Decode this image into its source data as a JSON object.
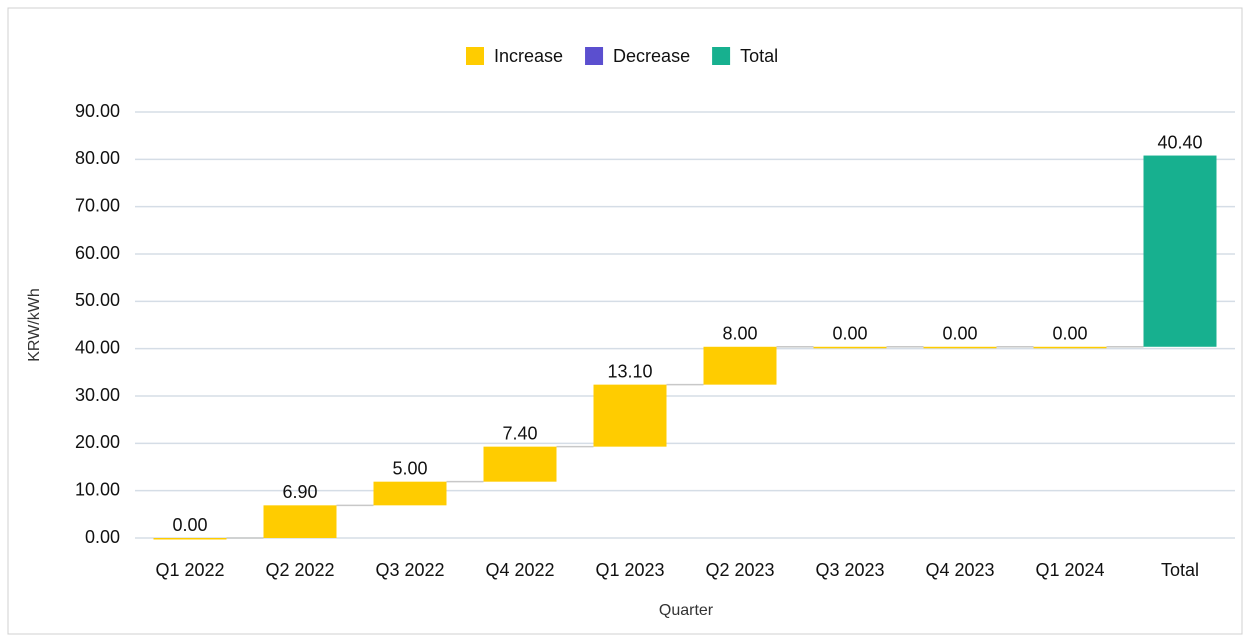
{
  "chart_data": {
    "type": "waterfall",
    "legend": [
      {
        "name": "Increase",
        "color": "#ffcc00"
      },
      {
        "name": "Decrease",
        "color": "#5b4fcf"
      },
      {
        "name": "Total",
        "color": "#17b08f"
      }
    ],
    "categories": [
      "Q1 2022",
      "Q2 2022",
      "Q3 2022",
      "Q4 2022",
      "Q1 2023",
      "Q2 2023",
      "Q3 2023",
      "Q4 2023",
      "Q1 2024",
      "Total"
    ],
    "values": [
      0,
      6.9,
      5,
      7.4,
      13.1,
      8,
      0,
      0,
      0,
      40.4
    ],
    "value_labels": [
      "0.00",
      "6.90",
      "5.00",
      "7.40",
      "13.10",
      "8.00",
      "0.00",
      "0.00",
      "0.00",
      "40.40"
    ],
    "xlabel": "Quarter",
    "ylabel": "KRW/kWh",
    "ylim": [
      0,
      90
    ],
    "yticks": [
      {
        "value": 0,
        "label": "0.00"
      },
      {
        "value": 10,
        "label": "10.00"
      },
      {
        "value": 20,
        "label": "20.00"
      },
      {
        "value": 30,
        "label": "30.00"
      },
      {
        "value": 40,
        "label": "40.00"
      },
      {
        "value": 50,
        "label": "50.00"
      },
      {
        "value": 60,
        "label": "60.00"
      },
      {
        "value": 70,
        "label": "70.00"
      },
      {
        "value": 80,
        "label": "80.00"
      },
      {
        "value": 90,
        "label": "90.00"
      }
    ],
    "grid": true
  }
}
